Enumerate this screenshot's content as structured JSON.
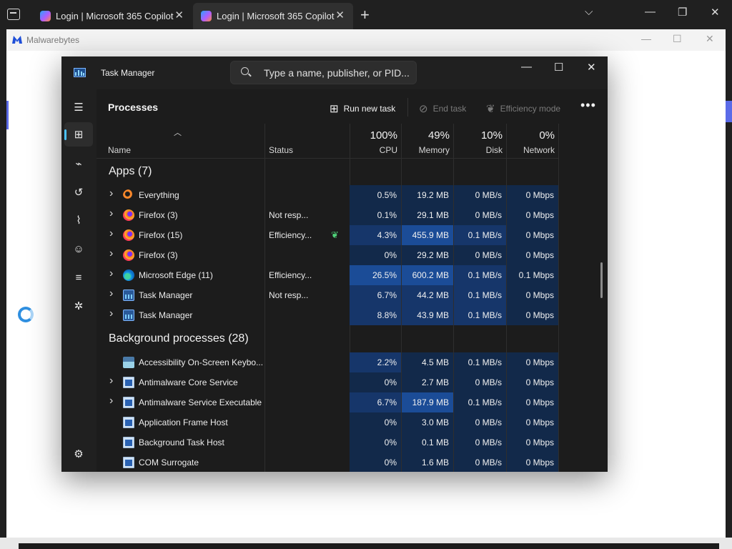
{
  "browser": {
    "tabs": [
      {
        "title": "Login | Microsoft 365 Copilot",
        "active": false
      },
      {
        "title": "Login | Microsoft 365 Copilot",
        "active": true
      }
    ],
    "new_tab": "+",
    "controls": {
      "dropdown": "⌵",
      "minimize": "—",
      "restore": "❐",
      "close": "✕"
    }
  },
  "background_window": {
    "title": "Malwarebytes",
    "controls": {
      "minimize": "—",
      "maximize": "☐",
      "close": "✕"
    },
    "accent_color": "#5b6be8"
  },
  "task_manager": {
    "title": "Task Manager",
    "search": {
      "placeholder": "Type a name, publisher, or PID..."
    },
    "controls": {
      "minimize": "—",
      "maximize": "☐",
      "close": "✕"
    },
    "nav": [
      {
        "icon": "hamburger-icon",
        "glyph": "☰"
      },
      {
        "icon": "processes-icon",
        "glyph": "⊞",
        "active": true
      },
      {
        "icon": "performance-icon",
        "glyph": "⌁"
      },
      {
        "icon": "app-history-icon",
        "glyph": "↺"
      },
      {
        "icon": "startup-apps-icon",
        "glyph": "⌇"
      },
      {
        "icon": "users-icon",
        "glyph": "☺"
      },
      {
        "icon": "details-icon",
        "glyph": "≡"
      },
      {
        "icon": "services-icon",
        "glyph": "✲"
      },
      {
        "icon": "settings-icon",
        "glyph": "⚙"
      }
    ],
    "page_title": "Processes",
    "commands": {
      "run_new_task": "Run new task",
      "end_task": "End task",
      "efficiency_mode": "Efficiency mode",
      "more": "•••"
    },
    "columns": {
      "name": "Name",
      "status": "Status",
      "cpu": {
        "pct": "100%",
        "label": "CPU"
      },
      "memory": {
        "pct": "49%",
        "label": "Memory"
      },
      "disk": {
        "pct": "10%",
        "label": "Disk"
      },
      "network": {
        "pct": "0%",
        "label": "Network"
      }
    },
    "groups": [
      {
        "label": "Apps (7)",
        "rows": [
          {
            "name": "Everything",
            "status": "",
            "leaf": false,
            "cpu": "0.5%",
            "mem": "19.2 MB",
            "disk": "0 MB/s",
            "net": "0 Mbps",
            "icon": "everything-icon",
            "expand": true,
            "heat": [
              0,
              0,
              0,
              0
            ]
          },
          {
            "name": "Firefox (3)",
            "status": "Not resp...",
            "leaf": false,
            "cpu": "0.1%",
            "mem": "29.1 MB",
            "disk": "0 MB/s",
            "net": "0 Mbps",
            "icon": "firefox-icon",
            "expand": true,
            "heat": [
              0,
              0,
              0,
              0
            ]
          },
          {
            "name": "Firefox (15)",
            "status": "Efficiency...",
            "leaf": true,
            "cpu": "4.3%",
            "mem": "455.9 MB",
            "disk": "0.1 MB/s",
            "net": "0 Mbps",
            "icon": "firefox-icon",
            "expand": true,
            "heat": [
              1,
              2,
              1,
              0
            ]
          },
          {
            "name": "Firefox (3)",
            "status": "",
            "leaf": false,
            "cpu": "0%",
            "mem": "29.2 MB",
            "disk": "0 MB/s",
            "net": "0 Mbps",
            "icon": "firefox-icon",
            "expand": true,
            "heat": [
              0,
              0,
              0,
              0
            ]
          },
          {
            "name": "Microsoft Edge (11)",
            "status": "Efficiency...",
            "leaf": false,
            "cpu": "26.5%",
            "mem": "600.2 MB",
            "disk": "0.1 MB/s",
            "net": "0.1 Mbps",
            "icon": "edge-icon",
            "expand": true,
            "heat": [
              2,
              2,
              1,
              0
            ]
          },
          {
            "name": "Task Manager",
            "status": "Not resp...",
            "leaf": false,
            "cpu": "6.7%",
            "mem": "44.2 MB",
            "disk": "0.1 MB/s",
            "net": "0 Mbps",
            "icon": "task-manager-icon",
            "expand": true,
            "heat": [
              1,
              1,
              1,
              0
            ]
          },
          {
            "name": "Task Manager",
            "status": "",
            "leaf": false,
            "cpu": "8.8%",
            "mem": "43.9 MB",
            "disk": "0.1 MB/s",
            "net": "0 Mbps",
            "icon": "task-manager-icon",
            "expand": true,
            "heat": [
              1,
              1,
              1,
              0
            ]
          }
        ]
      },
      {
        "label": "Background processes (28)",
        "rows": [
          {
            "name": "Accessibility On-Screen Keybo...",
            "status": "",
            "leaf": false,
            "cpu": "2.2%",
            "mem": "4.5 MB",
            "disk": "0.1 MB/s",
            "net": "0 Mbps",
            "icon": "keyboard-icon",
            "expand": false,
            "heat": [
              1,
              0,
              0,
              0
            ]
          },
          {
            "name": "Antimalware Core Service",
            "status": "",
            "leaf": false,
            "cpu": "0%",
            "mem": "2.7 MB",
            "disk": "0 MB/s",
            "net": "0 Mbps",
            "icon": "service-window-icon",
            "expand": true,
            "heat": [
              0,
              0,
              0,
              0
            ]
          },
          {
            "name": "Antimalware Service Executable",
            "status": "",
            "leaf": false,
            "cpu": "6.7%",
            "mem": "187.9 MB",
            "disk": "0.1 MB/s",
            "net": "0 Mbps",
            "icon": "service-window-icon",
            "expand": true,
            "heat": [
              1,
              2,
              0,
              0
            ]
          },
          {
            "name": "Application Frame Host",
            "status": "",
            "leaf": false,
            "cpu": "0%",
            "mem": "3.0 MB",
            "disk": "0 MB/s",
            "net": "0 Mbps",
            "icon": "service-window-icon",
            "expand": false,
            "heat": [
              0,
              0,
              0,
              0
            ]
          },
          {
            "name": "Background Task Host",
            "status": "",
            "leaf": false,
            "cpu": "0%",
            "mem": "0.1 MB",
            "disk": "0 MB/s",
            "net": "0 Mbps",
            "icon": "service-window-icon",
            "expand": false,
            "heat": [
              0,
              0,
              0,
              0
            ]
          },
          {
            "name": "COM Surrogate",
            "status": "",
            "leaf": false,
            "cpu": "0%",
            "mem": "1.6 MB",
            "disk": "0 MB/s",
            "net": "0 Mbps",
            "icon": "service-window-icon",
            "expand": false,
            "heat": [
              0,
              0,
              0,
              0
            ]
          }
        ]
      }
    ]
  }
}
